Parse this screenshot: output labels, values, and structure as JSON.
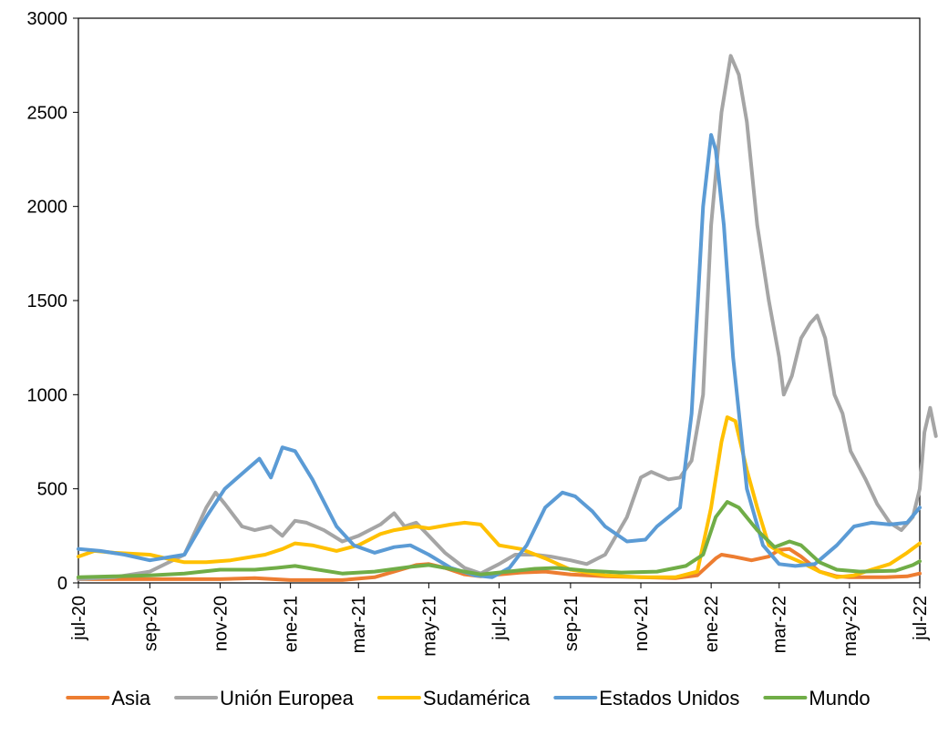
{
  "chart_data": {
    "type": "line",
    "title": "",
    "xlabel": "",
    "ylabel": "",
    "ylim": [
      0,
      3000
    ],
    "yticks": [
      0,
      500,
      1000,
      1500,
      2000,
      2500,
      3000
    ],
    "x_ticks": [
      "jul-20",
      "sep-20",
      "nov-20",
      "ene-21",
      "mar-21",
      "may-21",
      "jul-21",
      "sep-21",
      "nov-21",
      "ene-22",
      "mar-22",
      "may-22",
      "jul-22"
    ],
    "x_start": "2020-07-01",
    "x_end": "2022-07-01",
    "grid": false,
    "legend_position": "bottom",
    "series": [
      {
        "name": "Asia",
        "color": "#ED7D31",
        "points": [
          [
            "2020-07-01",
            20
          ],
          [
            "2020-09-01",
            20
          ],
          [
            "2020-11-01",
            20
          ],
          [
            "2020-12-01",
            25
          ],
          [
            "2021-01-01",
            15
          ],
          [
            "2021-02-15",
            15
          ],
          [
            "2021-03-15",
            30
          ],
          [
            "2021-04-01",
            60
          ],
          [
            "2021-04-20",
            95
          ],
          [
            "2021-05-01",
            100
          ],
          [
            "2021-05-15",
            80
          ],
          [
            "2021-06-01",
            45
          ],
          [
            "2021-06-15",
            35
          ],
          [
            "2021-07-01",
            45
          ],
          [
            "2021-07-20",
            55
          ],
          [
            "2021-08-10",
            60
          ],
          [
            "2021-09-01",
            45
          ],
          [
            "2021-10-01",
            35
          ],
          [
            "2021-11-01",
            30
          ],
          [
            "2021-12-01",
            25
          ],
          [
            "2021-12-20",
            40
          ],
          [
            "2022-01-05",
            130
          ],
          [
            "2022-01-10",
            150
          ],
          [
            "2022-01-20",
            140
          ],
          [
            "2022-02-05",
            120
          ],
          [
            "2022-02-20",
            140
          ],
          [
            "2022-03-01",
            175
          ],
          [
            "2022-03-10",
            180
          ],
          [
            "2022-03-20",
            140
          ],
          [
            "2022-04-05",
            60
          ],
          [
            "2022-04-20",
            35
          ],
          [
            "2022-05-01",
            30
          ],
          [
            "2022-06-01",
            30
          ],
          [
            "2022-06-20",
            35
          ],
          [
            "2022-07-01",
            50
          ]
        ]
      },
      {
        "name": "Unión Europea",
        "color": "#A5A5A5",
        "points": [
          [
            "2020-07-01",
            20
          ],
          [
            "2020-08-01",
            30
          ],
          [
            "2020-09-01",
            60
          ],
          [
            "2020-10-01",
            150
          ],
          [
            "2020-10-20",
            400
          ],
          [
            "2020-10-28",
            480
          ],
          [
            "2020-11-05",
            420
          ],
          [
            "2020-11-20",
            300
          ],
          [
            "2020-12-01",
            280
          ],
          [
            "2020-12-15",
            300
          ],
          [
            "2020-12-25",
            250
          ],
          [
            "2021-01-05",
            330
          ],
          [
            "2021-01-15",
            320
          ],
          [
            "2021-01-30",
            280
          ],
          [
            "2021-02-15",
            220
          ],
          [
            "2021-03-01",
            250
          ],
          [
            "2021-03-20",
            310
          ],
          [
            "2021-04-01",
            370
          ],
          [
            "2021-04-10",
            300
          ],
          [
            "2021-04-20",
            320
          ],
          [
            "2021-05-01",
            250
          ],
          [
            "2021-05-15",
            160
          ],
          [
            "2021-06-01",
            80
          ],
          [
            "2021-06-15",
            50
          ],
          [
            "2021-07-01",
            100
          ],
          [
            "2021-07-15",
            150
          ],
          [
            "2021-08-01",
            150
          ],
          [
            "2021-08-15",
            140
          ],
          [
            "2021-09-01",
            120
          ],
          [
            "2021-09-15",
            100
          ],
          [
            "2021-10-01",
            150
          ],
          [
            "2021-10-20",
            350
          ],
          [
            "2021-11-01",
            560
          ],
          [
            "2021-11-10",
            590
          ],
          [
            "2021-11-25",
            550
          ],
          [
            "2021-12-05",
            560
          ],
          [
            "2021-12-15",
            650
          ],
          [
            "2021-12-25",
            1000
          ],
          [
            "2022-01-01",
            1900
          ],
          [
            "2022-01-10",
            2500
          ],
          [
            "2022-01-18",
            2800
          ],
          [
            "2022-01-25",
            2700
          ],
          [
            "2022-02-01",
            2450
          ],
          [
            "2022-02-10",
            1900
          ],
          [
            "2022-02-20",
            1500
          ],
          [
            "2022-03-01",
            1200
          ],
          [
            "2022-03-05",
            1000
          ],
          [
            "2022-03-12",
            1100
          ],
          [
            "2022-03-20",
            1300
          ],
          [
            "2022-03-28",
            1380
          ],
          [
            "2022-04-03",
            1420
          ],
          [
            "2022-04-10",
            1300
          ],
          [
            "2022-04-18",
            1000
          ],
          [
            "2022-04-25",
            900
          ],
          [
            "2022-05-02",
            700
          ],
          [
            "2022-05-15",
            550
          ],
          [
            "2022-05-25",
            420
          ],
          [
            "2022-06-05",
            320
          ],
          [
            "2022-06-15",
            280
          ],
          [
            "2022-06-25",
            350
          ],
          [
            "2022-07-01",
            500
          ],
          [
            "2022-07-05",
            800
          ],
          [
            "2022-07-10",
            930
          ],
          [
            "2022-07-15",
            780
          ]
        ]
      },
      {
        "name": "Sudamérica",
        "color": "#FFC000",
        "points": [
          [
            "2020-07-01",
            140
          ],
          [
            "2020-07-15",
            170
          ],
          [
            "2020-08-01",
            160
          ],
          [
            "2020-09-01",
            150
          ],
          [
            "2020-09-15",
            130
          ],
          [
            "2020-10-01",
            110
          ],
          [
            "2020-10-20",
            110
          ],
          [
            "2020-11-10",
            120
          ],
          [
            "2020-12-10",
            150
          ],
          [
            "2020-12-25",
            180
          ],
          [
            "2021-01-05",
            210
          ],
          [
            "2021-01-20",
            200
          ],
          [
            "2021-02-10",
            170
          ],
          [
            "2021-03-01",
            200
          ],
          [
            "2021-03-20",
            260
          ],
          [
            "2021-04-01",
            280
          ],
          [
            "2021-04-20",
            300
          ],
          [
            "2021-05-01",
            290
          ],
          [
            "2021-05-20",
            310
          ],
          [
            "2021-06-01",
            320
          ],
          [
            "2021-06-15",
            310
          ],
          [
            "2021-07-01",
            200
          ],
          [
            "2021-07-20",
            180
          ],
          [
            "2021-08-10",
            130
          ],
          [
            "2021-09-01",
            70
          ],
          [
            "2021-10-01",
            40
          ],
          [
            "2021-11-01",
            30
          ],
          [
            "2021-12-01",
            30
          ],
          [
            "2021-12-20",
            60
          ],
          [
            "2022-01-01",
            400
          ],
          [
            "2022-01-10",
            750
          ],
          [
            "2022-01-15",
            880
          ],
          [
            "2022-01-22",
            860
          ],
          [
            "2022-02-01",
            600
          ],
          [
            "2022-02-10",
            400
          ],
          [
            "2022-02-20",
            200
          ],
          [
            "2022-03-05",
            150
          ],
          [
            "2022-03-20",
            110
          ],
          [
            "2022-04-05",
            60
          ],
          [
            "2022-04-20",
            30
          ],
          [
            "2022-05-05",
            40
          ],
          [
            "2022-05-20",
            70
          ],
          [
            "2022-06-05",
            100
          ],
          [
            "2022-06-20",
            160
          ],
          [
            "2022-07-01",
            210
          ]
        ]
      },
      {
        "name": "Estados Unidos",
        "color": "#5B9BD5",
        "points": [
          [
            "2020-07-01",
            180
          ],
          [
            "2020-07-20",
            170
          ],
          [
            "2020-08-10",
            150
          ],
          [
            "2020-09-01",
            120
          ],
          [
            "2020-10-01",
            150
          ],
          [
            "2020-10-20",
            350
          ],
          [
            "2020-11-05",
            500
          ],
          [
            "2020-11-20",
            580
          ],
          [
            "2020-12-05",
            660
          ],
          [
            "2020-12-15",
            560
          ],
          [
            "2020-12-25",
            720
          ],
          [
            "2021-01-05",
            700
          ],
          [
            "2021-01-20",
            550
          ],
          [
            "2021-02-10",
            300
          ],
          [
            "2021-02-25",
            200
          ],
          [
            "2021-03-15",
            160
          ],
          [
            "2021-04-01",
            190
          ],
          [
            "2021-04-15",
            200
          ],
          [
            "2021-05-01",
            150
          ],
          [
            "2021-05-20",
            80
          ],
          [
            "2021-06-10",
            40
          ],
          [
            "2021-06-25",
            30
          ],
          [
            "2021-07-10",
            80
          ],
          [
            "2021-07-25",
            200
          ],
          [
            "2021-08-10",
            400
          ],
          [
            "2021-08-25",
            480
          ],
          [
            "2021-09-05",
            460
          ],
          [
            "2021-09-20",
            380
          ],
          [
            "2021-10-01",
            300
          ],
          [
            "2021-10-20",
            220
          ],
          [
            "2021-11-05",
            230
          ],
          [
            "2021-11-15",
            300
          ],
          [
            "2021-11-25",
            350
          ],
          [
            "2021-12-05",
            400
          ],
          [
            "2021-12-15",
            900
          ],
          [
            "2021-12-25",
            2000
          ],
          [
            "2022-01-01",
            2380
          ],
          [
            "2022-01-05",
            2300
          ],
          [
            "2022-01-12",
            1900
          ],
          [
            "2022-01-20",
            1200
          ],
          [
            "2022-02-01",
            500
          ],
          [
            "2022-02-15",
            200
          ],
          [
            "2022-03-01",
            100
          ],
          [
            "2022-03-15",
            90
          ],
          [
            "2022-04-01",
            100
          ],
          [
            "2022-04-20",
            200
          ],
          [
            "2022-05-05",
            300
          ],
          [
            "2022-05-20",
            320
          ],
          [
            "2022-06-05",
            310
          ],
          [
            "2022-06-20",
            320
          ],
          [
            "2022-07-01",
            400
          ]
        ]
      },
      {
        "name": "Mundo",
        "color": "#70AD47",
        "points": [
          [
            "2020-07-01",
            30
          ],
          [
            "2020-08-01",
            35
          ],
          [
            "2020-09-01",
            40
          ],
          [
            "2020-10-01",
            50
          ],
          [
            "2020-11-01",
            70
          ],
          [
            "2020-12-01",
            70
          ],
          [
            "2020-12-20",
            80
          ],
          [
            "2021-01-05",
            90
          ],
          [
            "2021-01-20",
            75
          ],
          [
            "2021-02-15",
            50
          ],
          [
            "2021-03-15",
            60
          ],
          [
            "2021-04-15",
            85
          ],
          [
            "2021-05-01",
            95
          ],
          [
            "2021-05-15",
            80
          ],
          [
            "2021-06-01",
            60
          ],
          [
            "2021-06-15",
            45
          ],
          [
            "2021-07-01",
            55
          ],
          [
            "2021-08-01",
            75
          ],
          [
            "2021-08-20",
            80
          ],
          [
            "2021-09-15",
            65
          ],
          [
            "2021-10-15",
            55
          ],
          [
            "2021-11-15",
            60
          ],
          [
            "2021-12-10",
            90
          ],
          [
            "2021-12-25",
            150
          ],
          [
            "2022-01-05",
            350
          ],
          [
            "2022-01-15",
            430
          ],
          [
            "2022-01-25",
            400
          ],
          [
            "2022-02-10",
            280
          ],
          [
            "2022-02-25",
            190
          ],
          [
            "2022-03-10",
            220
          ],
          [
            "2022-03-20",
            200
          ],
          [
            "2022-04-05",
            110
          ],
          [
            "2022-04-20",
            70
          ],
          [
            "2022-05-10",
            60
          ],
          [
            "2022-06-10",
            65
          ],
          [
            "2022-06-25",
            95
          ],
          [
            "2022-07-01",
            115
          ]
        ]
      }
    ]
  }
}
